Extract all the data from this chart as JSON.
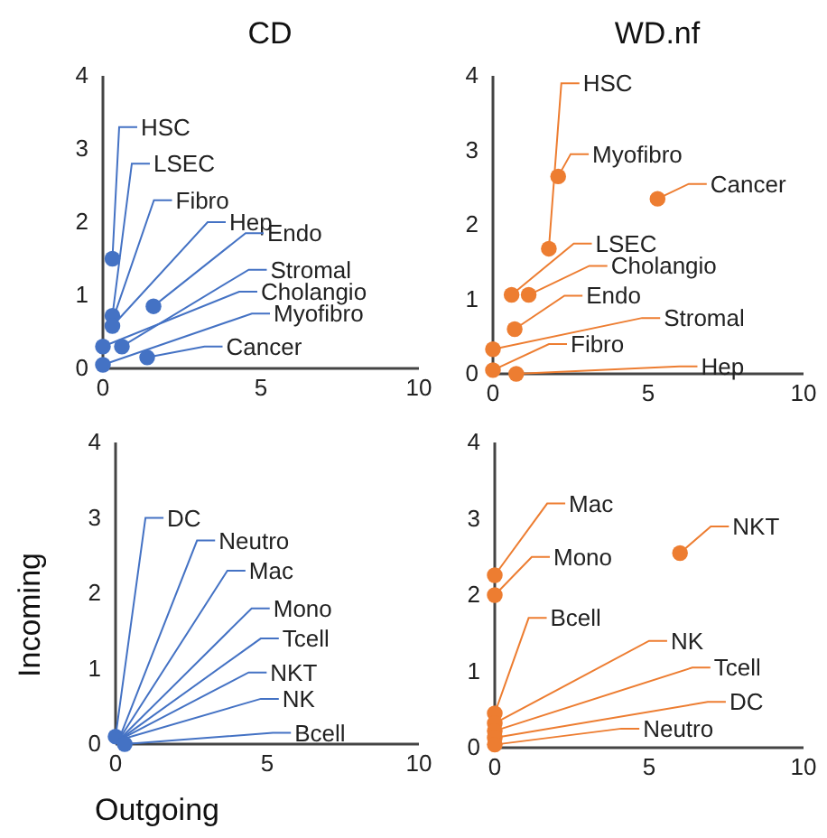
{
  "chart_data": [
    {
      "type": "scatter",
      "title": "CD",
      "marker": "circle",
      "grid": false,
      "xlim": [
        0,
        10
      ],
      "xticks": [
        0,
        5,
        10
      ],
      "ylim": [
        0,
        4
      ],
      "yticks": [
        0,
        1,
        2,
        3,
        4
      ],
      "series": [
        {
          "color": "#4472c4",
          "x": [
            0.3,
            0.3,
            null,
            0.3,
            1.6,
            0.6,
            0,
            0,
            1.4
          ],
          "values": [
            1.5,
            0.72,
            null,
            0.58,
            0.85,
            0.3,
            0.3,
            0.05,
            0.15
          ]
        }
      ],
      "annotations": [
        {
          "text": "HSC",
          "x": 0.3,
          "y": 1.5
        },
        {
          "text": "LSEC",
          "x": 0.3,
          "y": 0.72
        },
        {
          "text": "Fibro",
          "x": 0.3,
          "y": 0.65
        },
        {
          "text": "Hep",
          "x": 0.3,
          "y": 0.58
        },
        {
          "text": "Endo",
          "x": 1.6,
          "y": 0.85
        },
        {
          "text": "Stromal",
          "x": 0.6,
          "y": 0.3
        },
        {
          "text": "Cholangio",
          "x": 0,
          "y": 0.3
        },
        {
          "text": "Myofibro",
          "x": 0,
          "y": 0.05
        },
        {
          "text": "Cancer",
          "x": 1.4,
          "y": 0.15
        }
      ]
    },
    {
      "type": "scatter",
      "title": "WD.nf",
      "marker": "circle",
      "grid": false,
      "xlim": [
        0,
        10
      ],
      "xticks": [
        0,
        5,
        10
      ],
      "ylim": [
        0,
        4
      ],
      "yticks": [
        0,
        1,
        2,
        3,
        4
      ],
      "series": [
        {
          "color": "#ed7d31",
          "x": [
            1.8,
            2.1,
            5.3,
            0.6,
            1.15,
            0.7,
            0,
            0,
            0.75
          ],
          "values": [
            1.68,
            2.65,
            2.35,
            1.06,
            1.06,
            0.6,
            0.33,
            0.05,
            0.0
          ]
        }
      ],
      "annotations": [
        {
          "text": "HSC",
          "x": 1.8,
          "y": 1.68
        },
        {
          "text": "Myofibro",
          "x": 2.1,
          "y": 2.65
        },
        {
          "text": "Cancer",
          "x": 5.3,
          "y": 2.35
        },
        {
          "text": "LSEC",
          "x": 0.6,
          "y": 1.06
        },
        {
          "text": "Cholangio",
          "x": 1.15,
          "y": 1.06
        },
        {
          "text": "Endo",
          "x": 0.7,
          "y": 0.6
        },
        {
          "text": "Stromal",
          "x": 0,
          "y": 0.33
        },
        {
          "text": "Fibro",
          "x": 0,
          "y": 0.05
        },
        {
          "text": "Hep",
          "x": 0.75,
          "y": 0.0
        }
      ]
    },
    {
      "type": "scatter",
      "xlabel": "Outgoing",
      "ylabel": "Incoming",
      "marker": "circle",
      "grid": false,
      "xlim": [
        0,
        10
      ],
      "xticks": [
        0,
        5,
        10
      ],
      "ylim": [
        0,
        4
      ],
      "yticks": [
        0,
        1,
        2,
        3,
        4
      ],
      "series": [
        {
          "color": "#4472c4",
          "x": [
            0,
            null,
            null,
            null,
            null,
            null,
            null,
            0.3
          ],
          "values": [
            0.1,
            null,
            null,
            null,
            null,
            null,
            null,
            0
          ]
        }
      ],
      "annotations": [
        {
          "text": "DC",
          "x": 0,
          "y": 0.1
        },
        {
          "text": "Neutro",
          "x": 0.1,
          "y": 0.05
        },
        {
          "text": "Mac",
          "x": 0.1,
          "y": 0.05
        },
        {
          "text": "Mono",
          "x": 0.1,
          "y": 0.05
        },
        {
          "text": "Tcell",
          "x": 0.1,
          "y": 0.05
        },
        {
          "text": "NKT",
          "x": 0.1,
          "y": 0.05
        },
        {
          "text": "NK",
          "x": 0.1,
          "y": 0.05
        },
        {
          "text": "Bcell",
          "x": 0.3,
          "y": 0
        }
      ]
    },
    {
      "type": "scatter",
      "marker": "circle",
      "grid": false,
      "xlim": [
        0,
        10
      ],
      "xticks": [
        0,
        5,
        10
      ],
      "ylim": [
        0,
        4
      ],
      "yticks": [
        0,
        1,
        2,
        3,
        4
      ],
      "series": [
        {
          "color": "#ed7d31",
          "x": [
            0,
            0,
            6.0,
            0,
            0,
            0,
            0,
            0
          ],
          "values": [
            2.26,
            2.0,
            2.55,
            0.45,
            0.32,
            0.22,
            0.13,
            0.04
          ]
        }
      ],
      "annotations": [
        {
          "text": "Mac",
          "x": 0,
          "y": 2.26
        },
        {
          "text": "Mono",
          "x": 0,
          "y": 2.0
        },
        {
          "text": "NKT",
          "x": 6.0,
          "y": 2.55
        },
        {
          "text": "Bcell",
          "x": 0,
          "y": 0.45
        },
        {
          "text": "NK",
          "x": 0,
          "y": 0.32
        },
        {
          "text": "Tcell",
          "x": 0,
          "y": 0.22
        },
        {
          "text": "DC",
          "x": 0,
          "y": 0.13
        },
        {
          "text": "Neutro",
          "x": 0,
          "y": 0.04
        }
      ]
    }
  ]
}
